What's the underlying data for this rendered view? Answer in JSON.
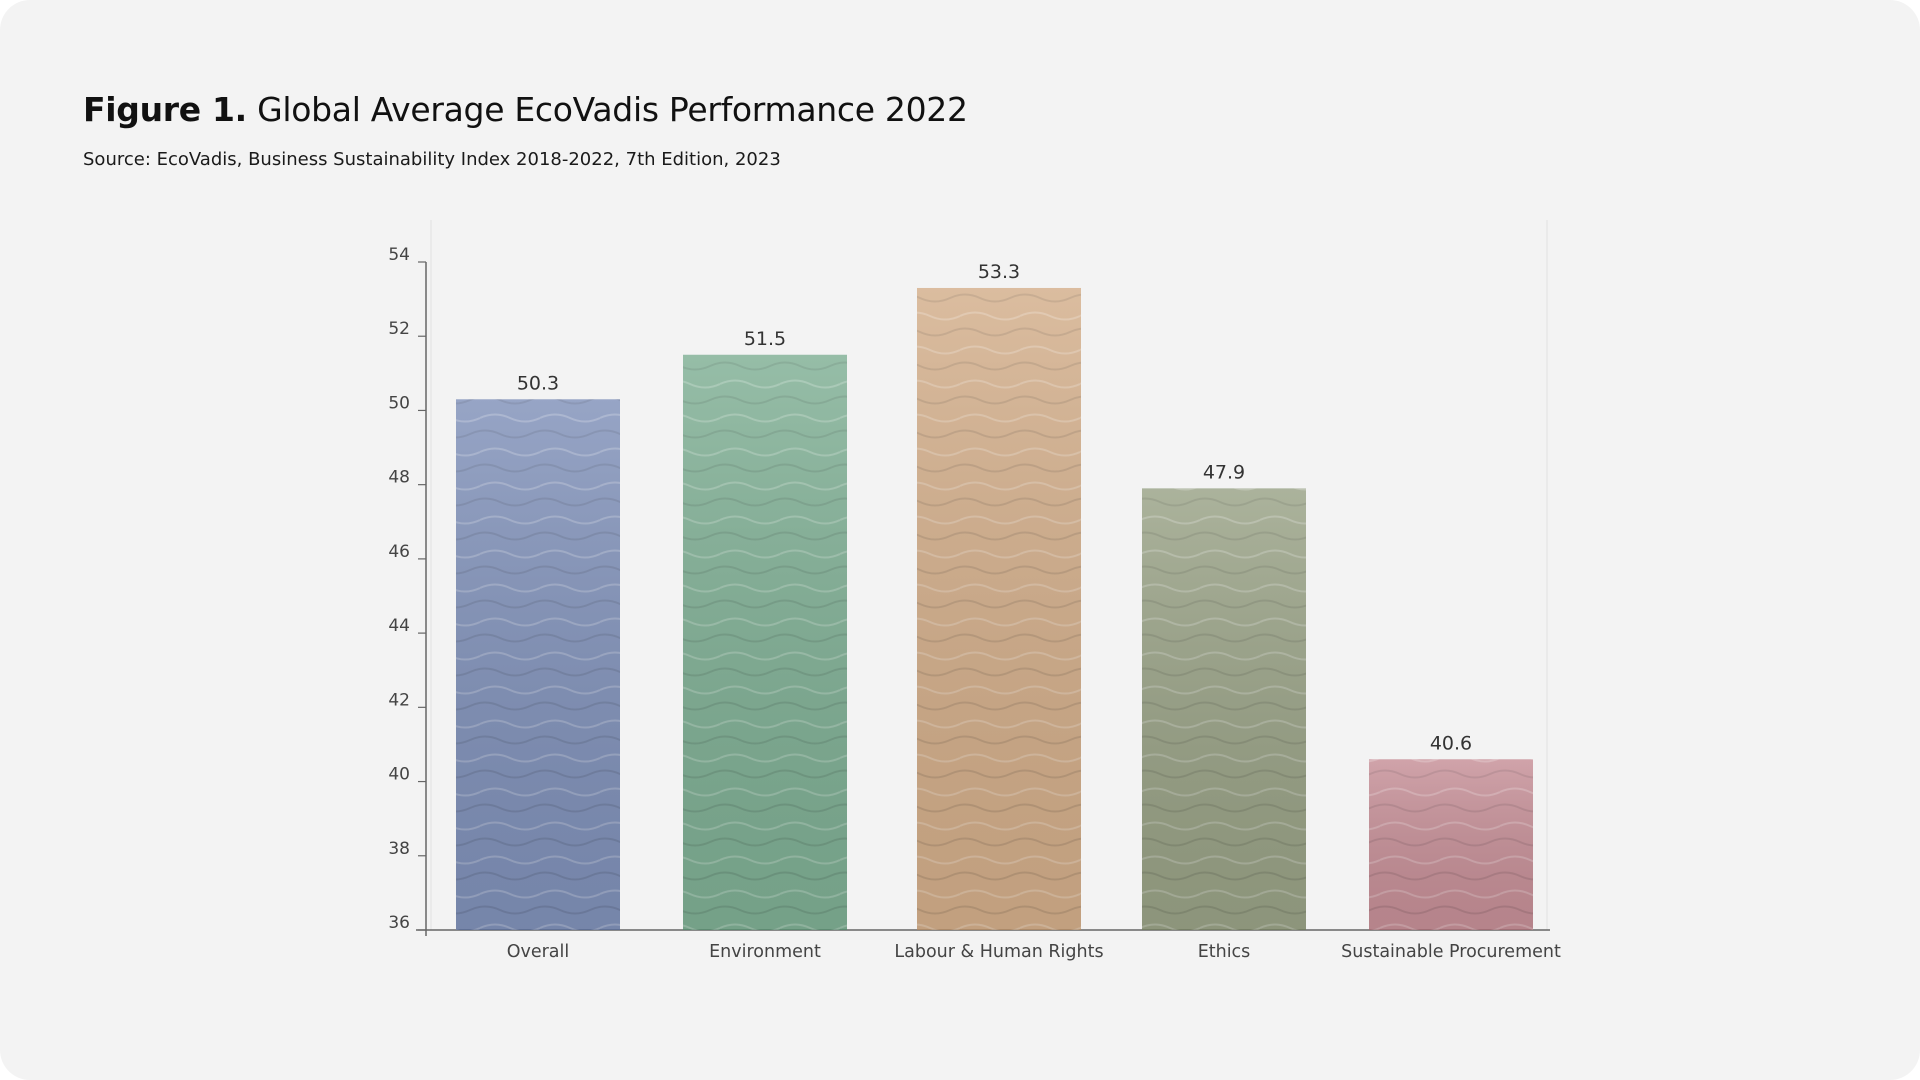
{
  "header": {
    "figure_label": "Figure 1.",
    "title": "Global Average EcoVadis Performance 2022",
    "source": "Source: EcoVadis, Business Sustainability Index 2018-2022, 7th Edition, 2023"
  },
  "chart_data": {
    "type": "bar",
    "categories": [
      "Overall",
      "Environment",
      "Labour & Human Rights",
      "Ethics",
      "Sustainable Procurement"
    ],
    "values": [
      50.3,
      51.5,
      53.3,
      47.9,
      40.6
    ],
    "data_labels": [
      "50.3",
      "51.5",
      "53.3",
      "47.9",
      "40.6"
    ],
    "colors": [
      "#5f74a8",
      "#5e9b78",
      "#c99a6c",
      "#7f8a66",
      "#b9727c"
    ],
    "ylim": [
      36,
      54
    ],
    "yticks": [
      36,
      38,
      40,
      42,
      44,
      46,
      48,
      50,
      52,
      54
    ],
    "grid": false,
    "legend": "none"
  }
}
